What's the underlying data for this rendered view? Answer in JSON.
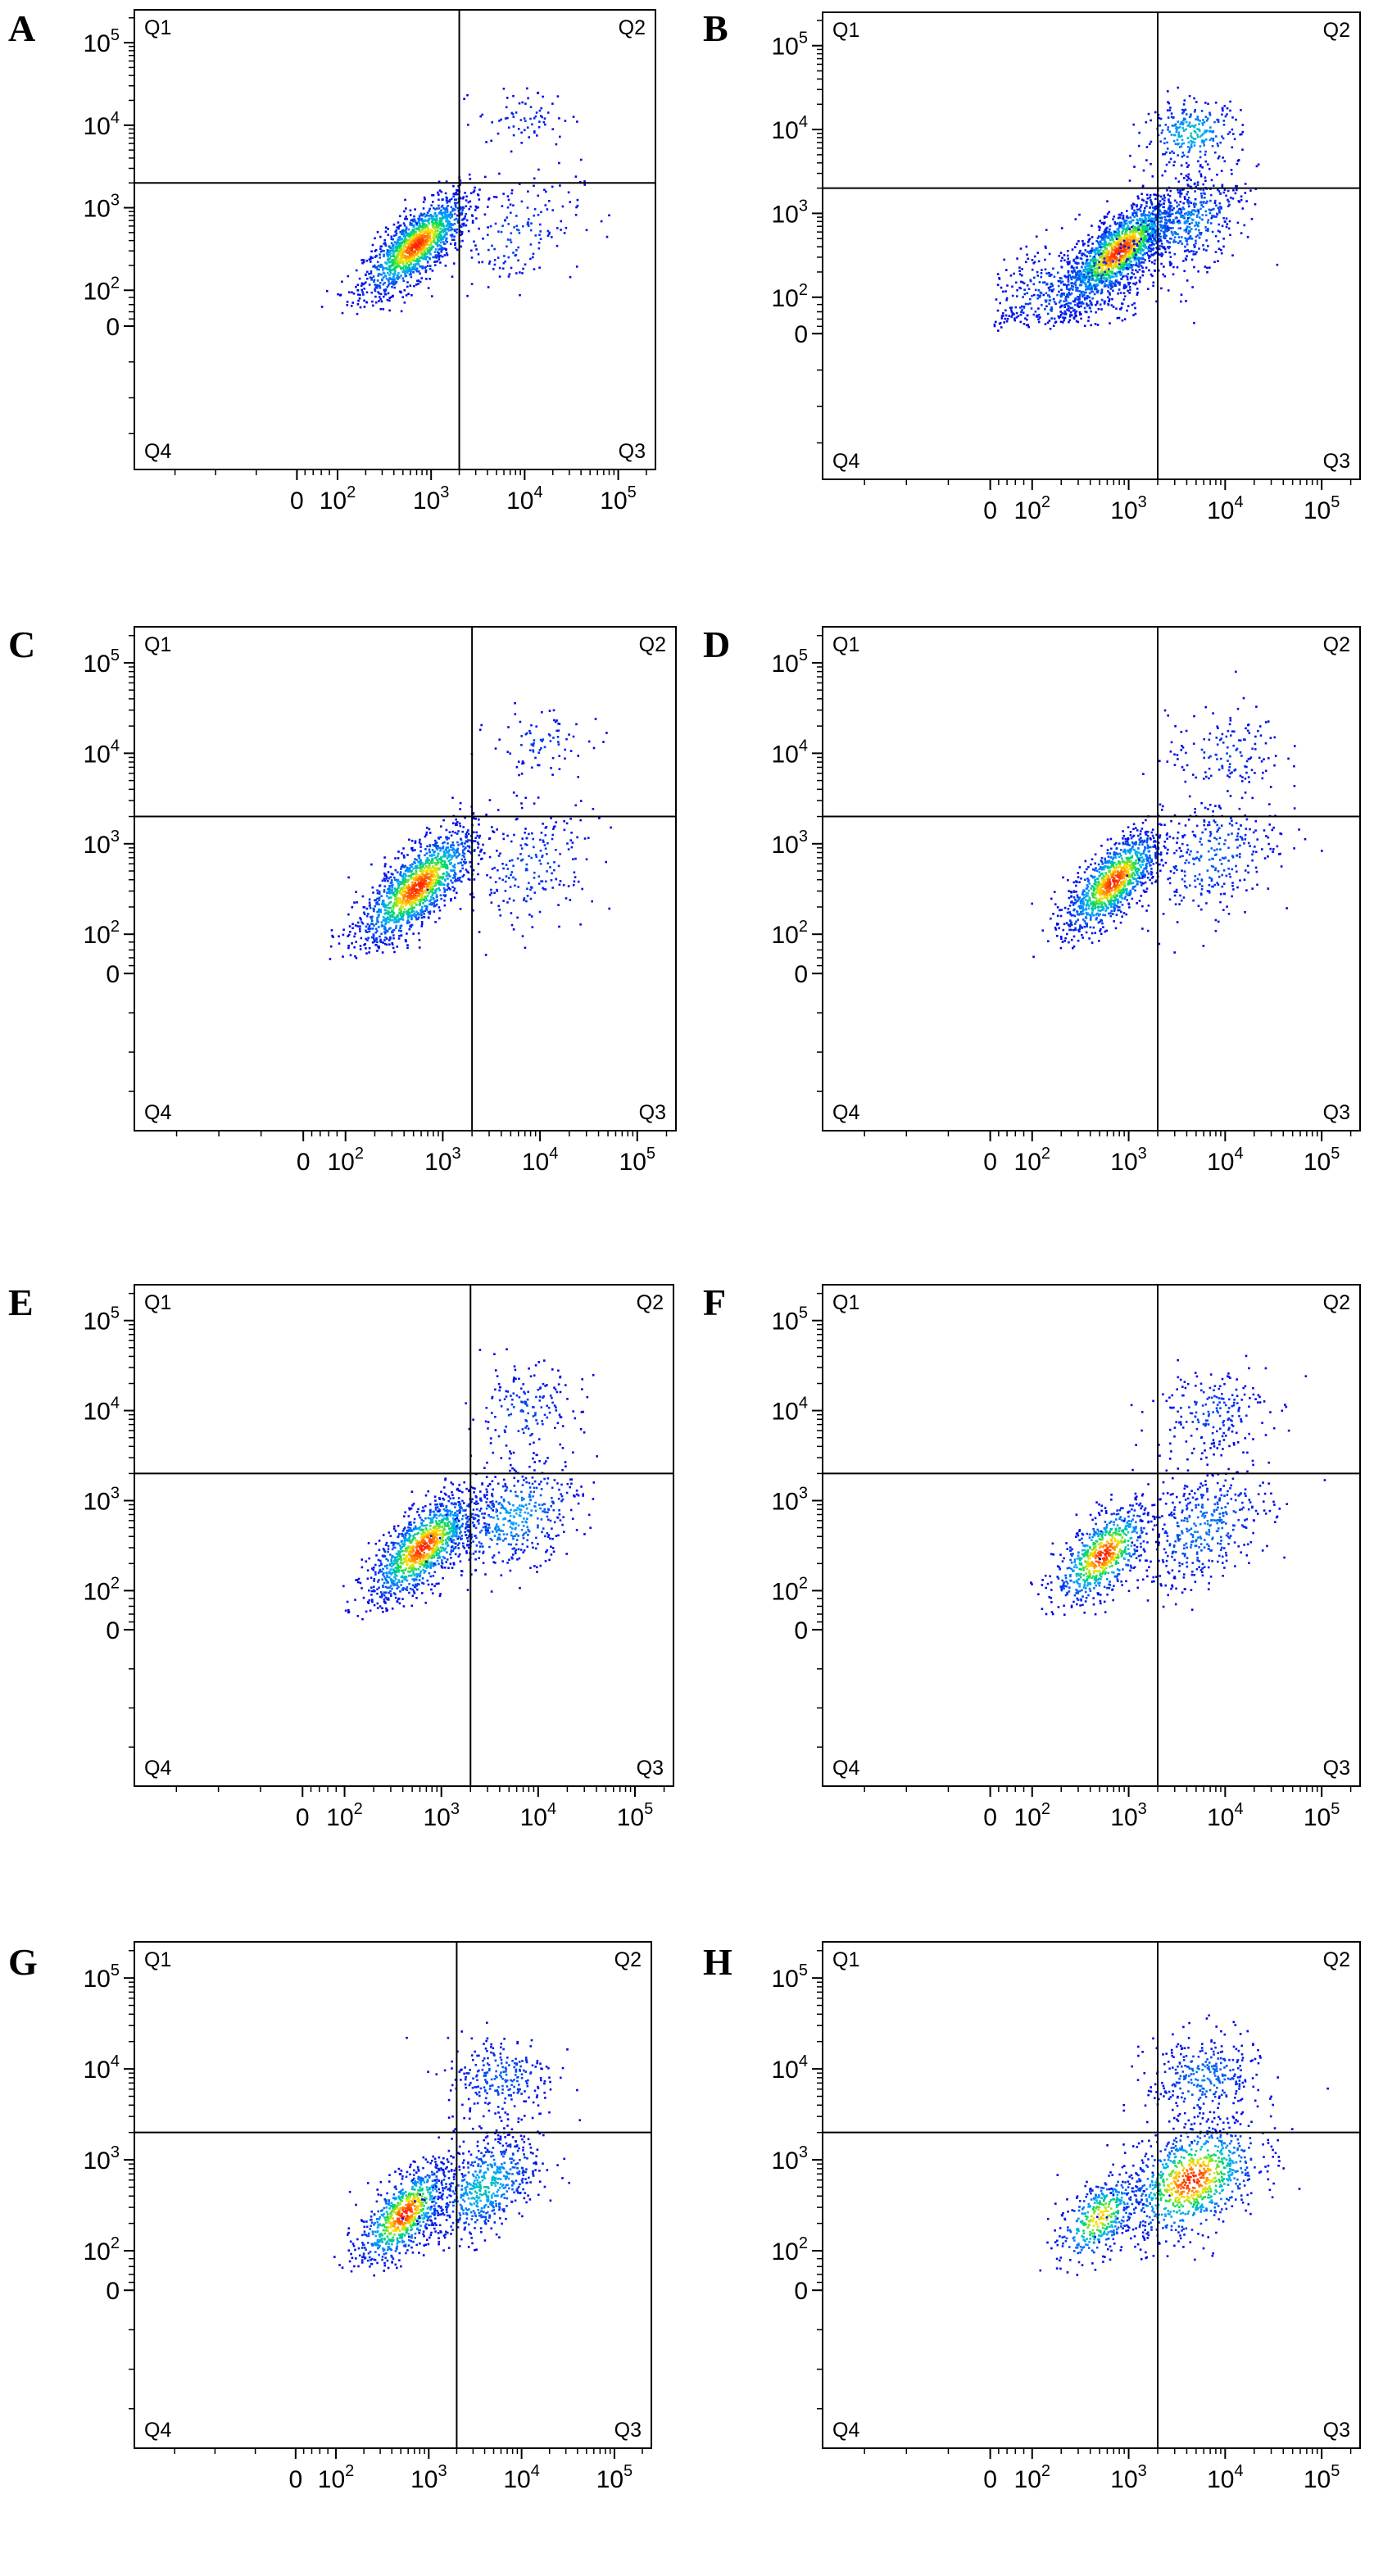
{
  "chart_data": [
    {
      "type": "scatter",
      "panel": "A",
      "quadrant_labels": [
        "Q1",
        "Q2",
        "Q3",
        "Q4"
      ],
      "x_tick_labels": [
        "0",
        "10^2",
        "10^3",
        "10^4",
        "10^5"
      ],
      "y_tick_labels": [
        "0",
        "10^2",
        "10^3",
        "10^4",
        "10^5"
      ],
      "x_scale": "biexponential",
      "y_scale": "biexponential",
      "xlim": [
        -400,
        250000
      ],
      "ylim": [
        -400,
        250000
      ],
      "gate": {
        "x": 2000,
        "y": 2000
      },
      "populations": [
        {
          "name": "",
          "cx": 700,
          "cy": 350,
          "sx": 0.28,
          "sy": 0.3,
          "rho": 0.75,
          "n": 1400,
          "peak": 1.0
        },
        {
          "name": "",
          "cx": 8000,
          "cy": 500,
          "sx": 0.35,
          "sy": 0.35,
          "rho": 0.3,
          "n": 160,
          "peak": 0.15
        },
        {
          "name": "",
          "cx": 10000,
          "cy": 12000,
          "sx": 0.25,
          "sy": 0.18,
          "rho": 0.1,
          "n": 70,
          "peak": 0.1
        }
      ]
    },
    {
      "type": "scatter",
      "panel": "B",
      "quadrant_labels": [
        "Q1",
        "Q2",
        "Q3",
        "Q4"
      ],
      "x_tick_labels": [
        "0",
        "10^2",
        "10^3",
        "10^4",
        "10^5"
      ],
      "y_tick_labels": [
        "0",
        "10^2",
        "10^3",
        "10^4",
        "10^5"
      ],
      "x_scale": "biexponential",
      "y_scale": "biexponential",
      "xlim": [
        -400,
        250000
      ],
      "ylim": [
        -400,
        250000
      ],
      "gate": {
        "x": 2000,
        "y": 2000
      },
      "populations": [
        {
          "name": "",
          "cx": 800,
          "cy": 350,
          "sx": 0.3,
          "sy": 0.32,
          "rho": 0.75,
          "n": 1600,
          "peak": 1.0
        },
        {
          "name": "",
          "cx": 250,
          "cy": 120,
          "sx": 0.5,
          "sy": 0.35,
          "rho": 0.4,
          "n": 450,
          "peak": 0.2
        },
        {
          "name": "",
          "cx": 4000,
          "cy": 800,
          "sx": 0.3,
          "sy": 0.3,
          "rho": 0.4,
          "n": 450,
          "peak": 0.3
        },
        {
          "name": "",
          "cx": 4500,
          "cy": 9000,
          "sx": 0.25,
          "sy": 0.2,
          "rho": 0.1,
          "n": 260,
          "peak": 0.45
        }
      ]
    },
    {
      "type": "scatter",
      "panel": "C",
      "quadrant_labels": [
        "Q1",
        "Q2",
        "Q3",
        "Q4"
      ],
      "x_tick_labels": [
        "0",
        "10^2",
        "10^3",
        "10^4",
        "10^5"
      ],
      "y_tick_labels": [
        "0",
        "10^2",
        "10^3",
        "10^4",
        "10^5"
      ],
      "x_scale": "biexponential",
      "y_scale": "biexponential",
      "xlim": [
        -400,
        250000
      ],
      "ylim": [
        -400,
        250000
      ],
      "gate": {
        "x": 2000,
        "y": 2000
      },
      "populations": [
        {
          "name": "",
          "cx": 550,
          "cy": 330,
          "sx": 0.3,
          "sy": 0.32,
          "rho": 0.75,
          "n": 1400,
          "peak": 1.0
        },
        {
          "name": "",
          "cx": 8000,
          "cy": 550,
          "sx": 0.35,
          "sy": 0.35,
          "rho": 0.35,
          "n": 200,
          "peak": 0.15
        },
        {
          "name": "",
          "cx": 10000,
          "cy": 13000,
          "sx": 0.25,
          "sy": 0.18,
          "rho": 0.1,
          "n": 80,
          "peak": 0.12
        }
      ]
    },
    {
      "type": "scatter",
      "panel": "D",
      "quadrant_labels": [
        "Q1",
        "Q2",
        "Q3",
        "Q4"
      ],
      "x_tick_labels": [
        "0",
        "10^2",
        "10^3",
        "10^4",
        "10^5"
      ],
      "y_tick_labels": [
        "0",
        "10^2",
        "10^3",
        "10^4",
        "10^5"
      ],
      "x_scale": "biexponential",
      "y_scale": "biexponential",
      "xlim": [
        -400,
        250000
      ],
      "ylim": [
        -400,
        250000
      ],
      "gate": {
        "x": 2000,
        "y": 2000
      },
      "populations": [
        {
          "name": "",
          "cx": 700,
          "cy": 380,
          "sx": 0.25,
          "sy": 0.28,
          "rho": 0.7,
          "n": 1100,
          "peak": 1.0
        },
        {
          "name": "",
          "cx": 7000,
          "cy": 700,
          "sx": 0.35,
          "sy": 0.35,
          "rho": 0.35,
          "n": 300,
          "peak": 0.2
        },
        {
          "name": "",
          "cx": 10000,
          "cy": 10000,
          "sx": 0.3,
          "sy": 0.25,
          "rho": 0.1,
          "n": 140,
          "peak": 0.12
        }
      ]
    },
    {
      "type": "scatter",
      "panel": "E",
      "quadrant_labels": [
        "Q1",
        "Q2",
        "Q3",
        "Q4"
      ],
      "x_tick_labels": [
        "0",
        "10^2",
        "10^3",
        "10^4",
        "10^5"
      ],
      "y_tick_labels": [
        "0",
        "10^2",
        "10^3",
        "10^4",
        "10^5"
      ],
      "x_scale": "biexponential",
      "y_scale": "biexponential",
      "xlim": [
        -400,
        250000
      ],
      "ylim": [
        -400,
        250000
      ],
      "gate": {
        "x": 2000,
        "y": 2000
      },
      "populations": [
        {
          "name": "",
          "cx": 650,
          "cy": 300,
          "sx": 0.28,
          "sy": 0.3,
          "rho": 0.7,
          "n": 1200,
          "peak": 1.0
        },
        {
          "name": "",
          "cx": 5500,
          "cy": 650,
          "sx": 0.35,
          "sy": 0.3,
          "rho": 0.4,
          "n": 450,
          "peak": 0.35
        },
        {
          "name": "",
          "cx": 7000,
          "cy": 10000,
          "sx": 0.3,
          "sy": 0.25,
          "rho": 0.1,
          "n": 160,
          "peak": 0.15
        }
      ]
    },
    {
      "type": "scatter",
      "panel": "F",
      "quadrant_labels": [
        "Q1",
        "Q2",
        "Q3",
        "Q4"
      ],
      "x_tick_labels": [
        "0",
        "10^2",
        "10^3",
        "10^4",
        "10^5"
      ],
      "y_tick_labels": [
        "0",
        "10^2",
        "10^3",
        "10^4",
        "10^5"
      ],
      "x_scale": "biexponential",
      "y_scale": "biexponential",
      "xlim": [
        -400,
        250000
      ],
      "ylim": [
        -400,
        250000
      ],
      "gate": {
        "x": 2000,
        "y": 2000
      },
      "populations": [
        {
          "name": "",
          "cx": 550,
          "cy": 250,
          "sx": 0.25,
          "sy": 0.28,
          "rho": 0.6,
          "n": 700,
          "peak": 1.0
        },
        {
          "name": "",
          "cx": 6000,
          "cy": 500,
          "sx": 0.35,
          "sy": 0.35,
          "rho": 0.4,
          "n": 420,
          "peak": 0.25
        },
        {
          "name": "",
          "cx": 7000,
          "cy": 10000,
          "sx": 0.3,
          "sy": 0.25,
          "rho": 0.1,
          "n": 200,
          "peak": 0.15
        }
      ]
    },
    {
      "type": "scatter",
      "panel": "G",
      "quadrant_labels": [
        "Q1",
        "Q2",
        "Q3",
        "Q4"
      ],
      "x_tick_labels": [
        "0",
        "10^2",
        "10^3",
        "10^4",
        "10^5"
      ],
      "y_tick_labels": [
        "0",
        "10^2",
        "10^3",
        "10^4",
        "10^5"
      ],
      "x_scale": "biexponential",
      "y_scale": "biexponential",
      "xlim": [
        -400,
        250000
      ],
      "ylim": [
        -400,
        250000
      ],
      "gate": {
        "x": 2000,
        "y": 2000
      },
      "populations": [
        {
          "name": "",
          "cx": 550,
          "cy": 250,
          "sx": 0.25,
          "sy": 0.28,
          "rho": 0.65,
          "n": 800,
          "peak": 1.0
        },
        {
          "name": "",
          "cx": 4000,
          "cy": 500,
          "sx": 0.3,
          "sy": 0.3,
          "rho": 0.45,
          "n": 600,
          "peak": 0.45
        },
        {
          "name": "",
          "cx": 6000,
          "cy": 8000,
          "sx": 0.3,
          "sy": 0.25,
          "rho": 0.1,
          "n": 260,
          "peak": 0.2
        }
      ]
    },
    {
      "type": "scatter",
      "panel": "H",
      "quadrant_labels": [
        "Q1",
        "Q2",
        "Q3",
        "Q4"
      ],
      "x_tick_labels": [
        "0",
        "10^2",
        "10^3",
        "10^4",
        "10^5"
      ],
      "y_tick_labels": [
        "0",
        "10^2",
        "10^3",
        "10^4",
        "10^5"
      ],
      "x_scale": "biexponential",
      "y_scale": "biexponential",
      "xlim": [
        -400,
        250000
      ],
      "ylim": [
        -400,
        250000
      ],
      "gate": {
        "x": 2000,
        "y": 2000
      },
      "populations": [
        {
          "name": "",
          "cx": 500,
          "cy": 230,
          "sx": 0.22,
          "sy": 0.25,
          "rho": 0.55,
          "n": 400,
          "peak": 0.8
        },
        {
          "name": "",
          "cx": 4500,
          "cy": 600,
          "sx": 0.35,
          "sy": 0.32,
          "rho": 0.4,
          "n": 900,
          "peak": 1.0
        },
        {
          "name": "",
          "cx": 6000,
          "cy": 8000,
          "sx": 0.3,
          "sy": 0.25,
          "rho": 0.1,
          "n": 320,
          "peak": 0.25
        }
      ]
    }
  ]
}
